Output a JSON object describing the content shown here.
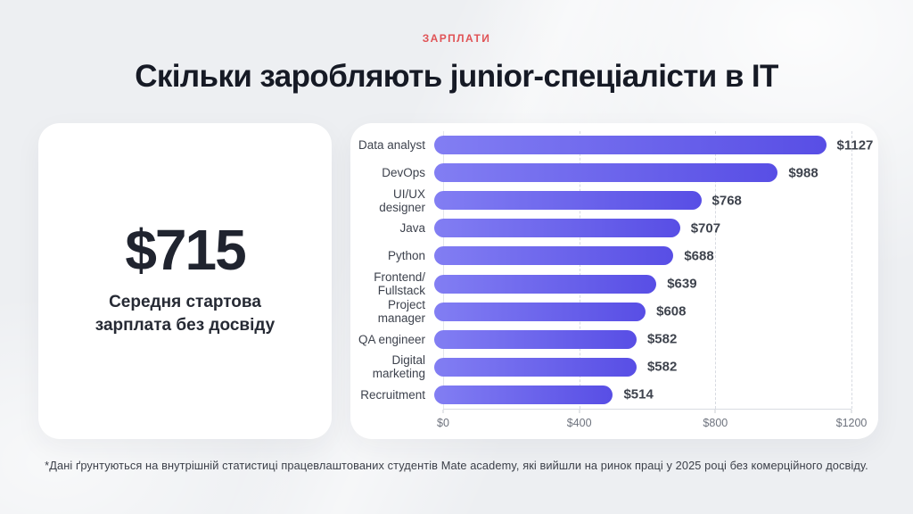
{
  "eyebrow": "ЗАРПЛАТИ",
  "title": "Скільки заробляють junior-спеціалісти в ІТ",
  "stat_card": {
    "value": "$715",
    "caption": "Середня стартова\nзарплата без досвіду"
  },
  "footnote": "*Дані ґрунтуються на внутрішній статистиці працевлаштованих студентів Mate academy, які вийшли на ринок праці у 2025 році без комерційного досвіду.",
  "colors": {
    "accent_red": "#E05356",
    "bar_gradient_start": "#827EF3",
    "bar_gradient_end": "#584EE5",
    "background": "#EDEFF2",
    "card": "#FFFFFF",
    "title_text": "#161A25",
    "label_text": "#3D424D",
    "axis_text": "#6E737E"
  },
  "chart_data": {
    "type": "bar",
    "orientation": "horizontal",
    "title": "Скільки заробляють junior-спеціалісти в ІТ",
    "categories": [
      "Data analyst",
      "DevOps",
      "UI/UX\ndesigner",
      "Java",
      "Python",
      "Frontend/\nFullstack",
      "Project\nmanager",
      "QA engineer",
      "Digital\nmarketing",
      "Recruitment"
    ],
    "values": [
      1127,
      988,
      768,
      707,
      688,
      639,
      608,
      582,
      582,
      514
    ],
    "value_labels": [
      "$1127",
      "$988",
      "$768",
      "$707",
      "$688",
      "$639",
      "$608",
      "$582",
      "$582",
      "$514"
    ],
    "xlabel": "",
    "ylabel": "",
    "xlim": [
      0,
      1200
    ],
    "x_ticks": [
      0,
      400,
      800,
      1200
    ],
    "x_tick_labels": [
      "$0",
      "$400",
      "$800",
      "$1200"
    ],
    "grid": "dashed-vertical",
    "legend": "none"
  }
}
